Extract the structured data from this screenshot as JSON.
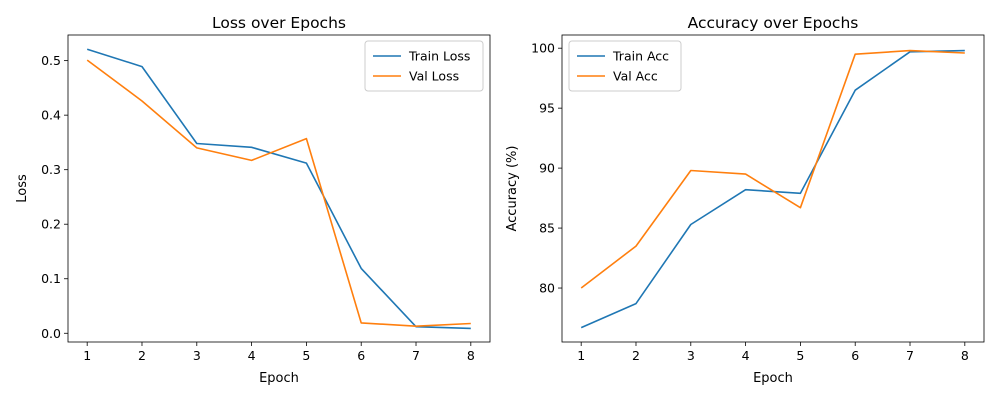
{
  "chart_data": [
    {
      "type": "line",
      "title": "Loss over Epochs",
      "xlabel": "Epoch",
      "ylabel": "Loss",
      "x": [
        1,
        2,
        3,
        4,
        5,
        6,
        7,
        8
      ],
      "xticks": [
        "1",
        "2",
        "3",
        "4",
        "5",
        "6",
        "7",
        "8"
      ],
      "yticks": [
        "0.0",
        "0.1",
        "0.2",
        "0.3",
        "0.4",
        "0.5"
      ],
      "xlim": [
        0.65,
        8.35
      ],
      "ylim": [
        -0.016,
        0.547
      ],
      "grid": false,
      "legend_position": "top-right",
      "series": [
        {
          "name": "Train Loss",
          "color": "#1f77b4",
          "values": [
            0.521,
            0.489,
            0.348,
            0.341,
            0.312,
            0.119,
            0.012,
            0.009
          ]
        },
        {
          "name": "Val Loss",
          "color": "#ff7f0e",
          "values": [
            0.501,
            0.426,
            0.34,
            0.317,
            0.357,
            0.019,
            0.013,
            0.018
          ]
        }
      ]
    },
    {
      "type": "line",
      "title": "Accuracy over Epochs",
      "xlabel": "Epoch",
      "ylabel": "Accuracy (%)",
      "x": [
        1,
        2,
        3,
        4,
        5,
        6,
        7,
        8
      ],
      "xticks": [
        "1",
        "2",
        "3",
        "4",
        "5",
        "6",
        "7",
        "8"
      ],
      "yticks": [
        "80",
        "85",
        "90",
        "95",
        "100"
      ],
      "xlim": [
        0.65,
        8.35
      ],
      "ylim": [
        75.5,
        101.1
      ],
      "grid": false,
      "legend_position": "top-left",
      "series": [
        {
          "name": "Train Acc",
          "color": "#1f77b4",
          "values": [
            76.7,
            78.7,
            85.3,
            88.2,
            87.9,
            96.5,
            99.7,
            99.8
          ]
        },
        {
          "name": "Val Acc",
          "color": "#ff7f0e",
          "values": [
            80.0,
            83.5,
            89.8,
            89.5,
            86.7,
            99.5,
            99.8,
            99.6
          ]
        }
      ]
    }
  ]
}
